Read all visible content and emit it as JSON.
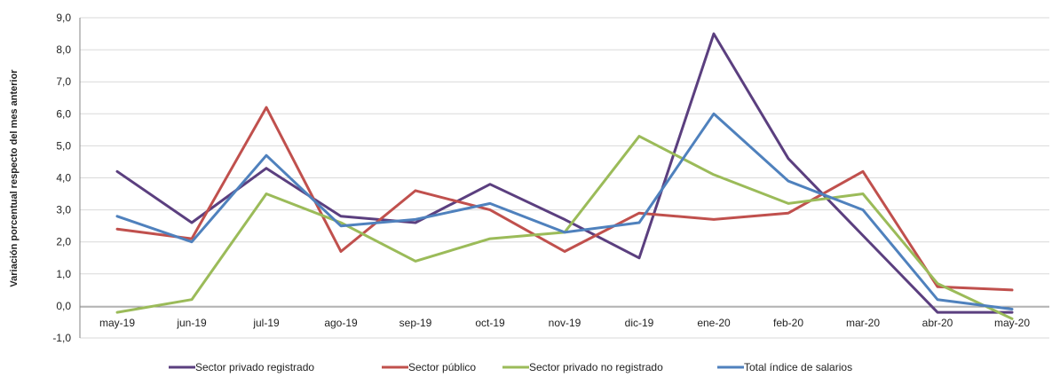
{
  "chart_data": {
    "type": "line",
    "ylabel": "Variación porcentual respecto del mes anterior",
    "xlabel": "",
    "ylim": [
      -1,
      9
    ],
    "ytick_values": [
      -1,
      0,
      1,
      2,
      3,
      4,
      5,
      6,
      7,
      8,
      9
    ],
    "ytick_labels": [
      "-1,0",
      "0,0",
      "1,0",
      "2,0",
      "3,0",
      "4,0",
      "5,0",
      "6,0",
      "7,0",
      "8,0",
      "9,0"
    ],
    "categories": [
      "may-19",
      "jun-19",
      "jul-19",
      "ago-19",
      "sep-19",
      "oct-19",
      "nov-19",
      "dic-19",
      "ene-20",
      "feb-20",
      "mar-20",
      "abr-20",
      "may-20"
    ],
    "grid": true,
    "legend_position": "bottom",
    "series": [
      {
        "name": "Sector privado registrado",
        "color": "#5b3f7f",
        "values": [
          4.2,
          2.6,
          4.3,
          2.8,
          2.6,
          3.8,
          2.7,
          1.5,
          8.5,
          4.6,
          2.2,
          -0.2,
          -0.2
        ]
      },
      {
        "name": "Sector público",
        "color": "#c0504d",
        "values": [
          2.4,
          2.1,
          6.2,
          1.7,
          3.6,
          3.0,
          1.7,
          2.9,
          2.7,
          2.9,
          4.2,
          0.6,
          0.5
        ]
      },
      {
        "name": "Sector privado no registrado",
        "color": "#9bbb59",
        "values": [
          -0.2,
          0.2,
          3.5,
          2.6,
          1.4,
          2.1,
          2.3,
          5.3,
          4.1,
          3.2,
          3.5,
          0.7,
          -0.4
        ]
      },
      {
        "name": "Total índice de salarios",
        "color": "#4f81bd",
        "values": [
          2.8,
          2.0,
          4.7,
          2.5,
          2.7,
          3.2,
          2.3,
          2.6,
          6.0,
          3.9,
          3.0,
          0.2,
          -0.1
        ]
      }
    ]
  }
}
